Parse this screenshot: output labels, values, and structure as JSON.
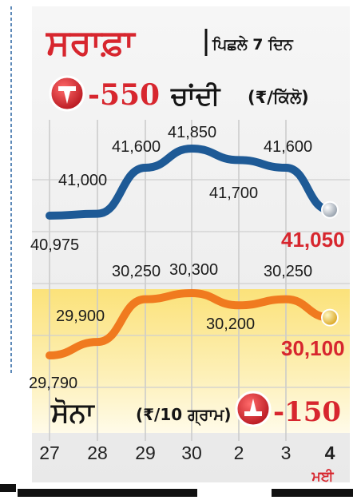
{
  "header": {
    "title": "ਸਰਾਫ਼ਾ",
    "subtitle": "ਪਿਛਲੇ 7 ਦਿਨ"
  },
  "silver": {
    "label": "ਚਾਂਦੀ",
    "unit": "(₹/ਕਿੱਲੋ)",
    "change": "-550"
  },
  "gold": {
    "label": "ਸੋਨਾ",
    "unit": "(₹/10 ਗ੍ਰਾਮ)",
    "change": "-150"
  },
  "month_label": "ਮਈ",
  "colors": {
    "silver": "#1e5a96",
    "gold": "#f07a1f",
    "accent": "#d7262e"
  },
  "chart_data": {
    "type": "line",
    "categories": [
      "27",
      "28",
      "29",
      "30",
      "2",
      "3",
      "4"
    ],
    "series": [
      {
        "name": "ਚਾਂਦੀ",
        "values": [
          40975,
          41000,
          41600,
          41850,
          41700,
          41600,
          41050
        ],
        "labels": [
          "40,975",
          "41,000",
          "41,600",
          "41,850",
          "41,700",
          "41,600",
          "41,050"
        ]
      },
      {
        "name": "ਸੋਨਾ",
        "values": [
          29790,
          29900,
          30250,
          30300,
          30200,
          30250,
          30100
        ],
        "labels": [
          "29,790",
          "29,900",
          "30,250",
          "30,300",
          "30,200",
          "30,250",
          "30,100"
        ]
      }
    ],
    "grid": true
  }
}
